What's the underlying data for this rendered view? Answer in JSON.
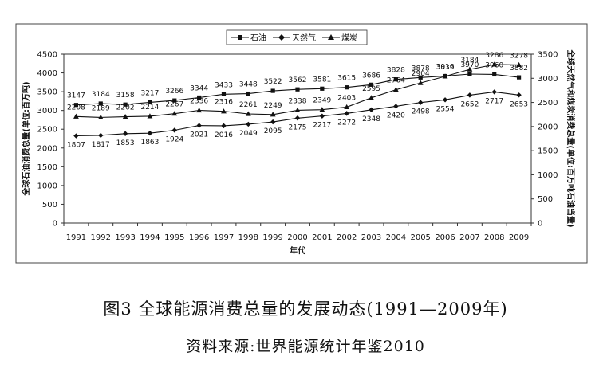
{
  "figure": {
    "caption": "图3 全球能源消费总量的发展动态(1991—2009年)",
    "source": "资料来源:世界能源统计年鉴2010"
  },
  "chart_data": {
    "type": "line",
    "title": "",
    "xlabel": "年代",
    "ylabel_left": "全球石油消费总量(单位:百万吨)",
    "ylabel_right": "全球天然气和煤炭消费总量(单位:百万吨石油当量)",
    "ylim_left": [
      0,
      4500
    ],
    "ylim_right": [
      0,
      3500
    ],
    "yticks_left": [
      0,
      500,
      1000,
      1500,
      2000,
      2500,
      3000,
      3500,
      4000,
      4500
    ],
    "yticks_right": [
      0,
      500,
      1000,
      1500,
      2000,
      2500,
      3000,
      3500
    ],
    "grid": false,
    "legend_position": "top-center",
    "categories": [
      "1991",
      "1992",
      "1993",
      "1994",
      "1995",
      "1996",
      "1997",
      "1998",
      "1999",
      "2000",
      "2001",
      "2002",
      "2003",
      "2004",
      "2005",
      "2006",
      "2007",
      "2008",
      "2009"
    ],
    "series": [
      {
        "name": "石油",
        "axis": "left",
        "marker": "square",
        "values": [
          3147,
          3184,
          3158,
          3217,
          3266,
          3344,
          3433,
          3448,
          3522,
          3562,
          3581,
          3615,
          3686,
          3828,
          3878,
          3916,
          3970,
          3960,
          3882
        ]
      },
      {
        "name": "天然气",
        "axis": "right",
        "marker": "diamond",
        "values": [
          1807,
          1817,
          1853,
          1863,
          1924,
          2021,
          2016,
          2049,
          2095,
          2175,
          2217,
          2272,
          2348,
          2420,
          2498,
          2554,
          2652,
          2717,
          2653
        ]
      },
      {
        "name": "煤炭",
        "axis": "right",
        "marker": "triangle",
        "values": [
          2208,
          2189,
          2202,
          2214,
          2267,
          2336,
          2316,
          2261,
          2249,
          2338,
          2349,
          2403,
          2595,
          2764,
          2904,
          3039,
          3184,
          3286,
          3278
        ]
      }
    ]
  }
}
